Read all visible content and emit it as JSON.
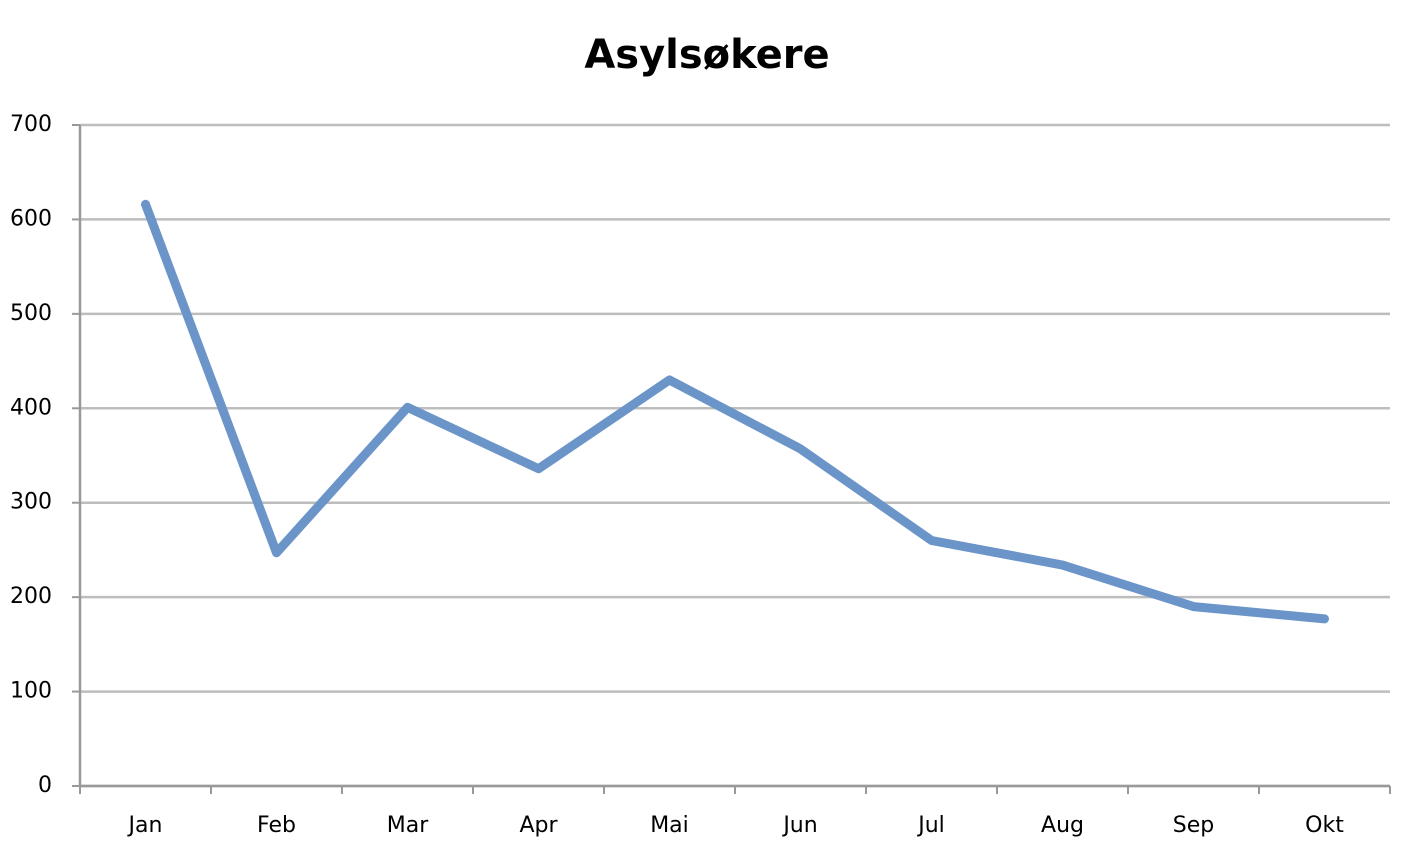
{
  "chart_data": {
    "type": "line",
    "title": "Asylsøkere",
    "categories": [
      "Jan",
      "Feb",
      "Mar",
      "Apr",
      "Mai",
      "Jun",
      "Jul",
      "Aug",
      "Sep",
      "Okt"
    ],
    "series": [
      {
        "name": "Asylsøkere",
        "color": "#6b95c9",
        "values": [
          616,
          247,
          401,
          336,
          430,
          357,
          260,
          234,
          190,
          177
        ]
      }
    ],
    "ylim": [
      0,
      700
    ],
    "yticks": [
      0,
      100,
      200,
      300,
      400,
      500,
      600,
      700
    ],
    "grid": true
  }
}
